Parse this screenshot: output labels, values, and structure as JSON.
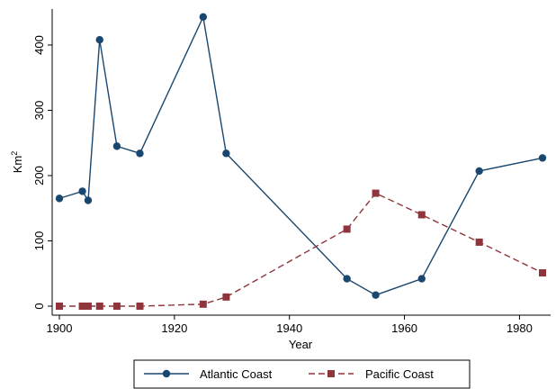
{
  "chart_data": {
    "type": "line",
    "title": "",
    "xlabel": "Year",
    "ylabel": "Km",
    "ylabel_superscript": "2",
    "xlim": [
      1900,
      1985
    ],
    "ylim": [
      0,
      450
    ],
    "xticks": [
      1900,
      1920,
      1940,
      1960,
      1980
    ],
    "yticks": [
      0,
      100,
      200,
      300,
      400
    ],
    "grid": false,
    "legend_position": "bottom",
    "series": [
      {
        "name": "Atlantic Coast",
        "color": "#1a476f",
        "marker": "circle",
        "line_style": "solid",
        "x": [
          1900,
          1904,
          1905,
          1907,
          1910,
          1914,
          1925,
          1929,
          1950,
          1955,
          1963,
          1973,
          1984
        ],
        "y": [
          165,
          176,
          162,
          408,
          245,
          234,
          443,
          234,
          42,
          17,
          42,
          207,
          227
        ]
      },
      {
        "name": "Pacific Coast",
        "color": "#90353b",
        "marker": "square",
        "line_style": "dashed",
        "x": [
          1900,
          1904,
          1905,
          1907,
          1910,
          1914,
          1925,
          1929,
          1950,
          1955,
          1963,
          1973,
          1984
        ],
        "y": [
          0,
          0,
          0,
          0,
          0,
          0,
          3,
          14,
          118,
          173,
          140,
          98,
          51
        ]
      }
    ]
  }
}
